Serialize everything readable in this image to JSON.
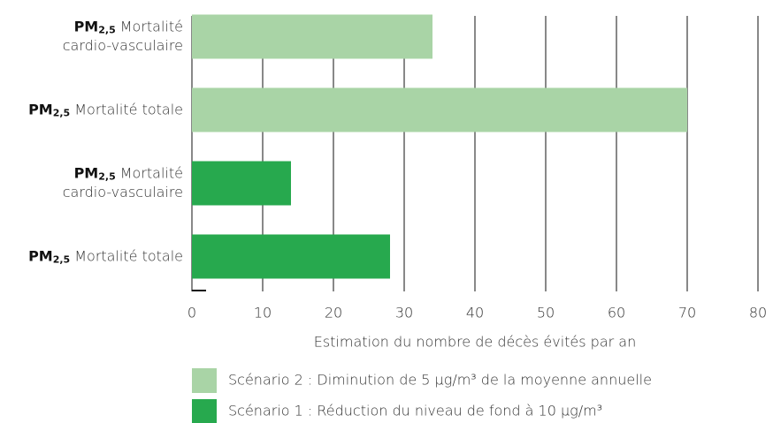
{
  "chart_data": {
    "type": "barh",
    "category_prefix": "PM",
    "category_subscript": "2,5",
    "categories": [
      "Mortalité\ncardio-vasculaire",
      "Mortalité totale",
      "Mortalité\ncardio-vasculaire",
      "Mortalité totale"
    ],
    "series": [
      {
        "name": "Scénario 2 : Diminution de 5 µg/m³ de la moyenne annuelle",
        "color": "#a9d4a6",
        "values": [
          34,
          70,
          null,
          null
        ]
      },
      {
        "name": "Scénario 1 : Réduction du niveau de fond à 10 µg/m³",
        "color": "#27a94e",
        "values": [
          null,
          null,
          14,
          28
        ]
      }
    ],
    "xlim": [
      0,
      80
    ],
    "xticks": [
      0,
      10,
      20,
      30,
      40,
      50,
      60,
      70,
      80
    ],
    "x_label": "Estimation du nombre de décès évités par an",
    "grid": true
  }
}
